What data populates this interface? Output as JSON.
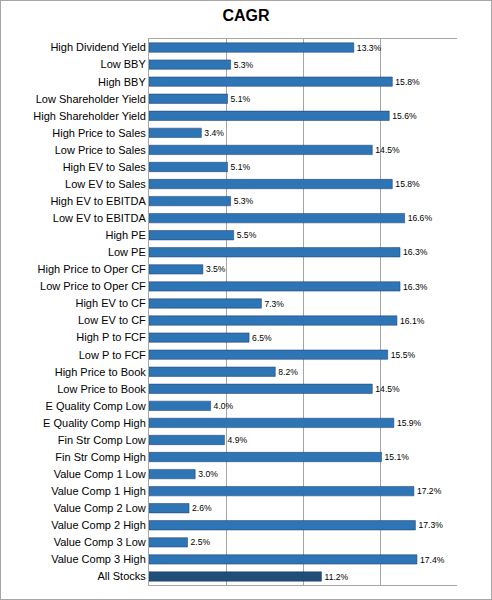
{
  "chart_data": {
    "type": "bar",
    "title": "CAGR",
    "orientation": "horizontal",
    "categories": [
      "High Dividend Yield",
      "Low BBY",
      "High BBY",
      "Low Shareholder Yield",
      "High Shareholder Yield",
      "High Price to Sales",
      "Low Price to Sales",
      "High EV to Sales",
      "Low EV to Sales",
      "High EV to EBITDA",
      "Low EV to EBITDA",
      "High PE",
      "Low PE",
      "High Price to Oper CF",
      "Low Price to Oper CF",
      "High EV to CF",
      "Low EV to CF",
      "High P to FCF",
      "Low P to FCF",
      "High Price to Book",
      "Low Price to Book",
      "E Quality Comp Low",
      "E Quality Comp High",
      "Fin Str Comp Low",
      "Fin Str Comp High",
      "Value Comp 1 Low",
      "Value Comp 1 High",
      "Value Comp 2 Low",
      "Value Comp 2 High",
      "Value Comp 3 Low",
      "Value Comp 3 High",
      "All Stocks"
    ],
    "values": [
      13.3,
      5.3,
      15.8,
      5.1,
      15.6,
      3.4,
      14.5,
      5.1,
      15.8,
      5.3,
      16.6,
      5.5,
      16.3,
      3.5,
      16.3,
      7.3,
      16.1,
      6.5,
      15.5,
      8.2,
      14.5,
      4.0,
      15.9,
      4.9,
      15.1,
      3.0,
      17.2,
      2.6,
      17.3,
      2.5,
      17.4,
      11.2
    ],
    "value_labels": [
      "13.3%",
      "5.3%",
      "15.8%",
      "5.1%",
      "15.6%",
      "3.4%",
      "14.5%",
      "5.1%",
      "15.8%",
      "5.3%",
      "16.6%",
      "5.5%",
      "16.3%",
      "3.5%",
      "16.3%",
      "7.3%",
      "16.1%",
      "6.5%",
      "15.5%",
      "8.2%",
      "14.5%",
      "4.0%",
      "15.9%",
      "4.9%",
      "15.1%",
      "3.0%",
      "17.2%",
      "2.6%",
      "17.3%",
      "2.5%",
      "17.4%",
      "11.2%"
    ],
    "colors": [
      "#2e75b6",
      "#2e75b6",
      "#2e75b6",
      "#2e75b6",
      "#2e75b6",
      "#2e75b6",
      "#2e75b6",
      "#2e75b6",
      "#2e75b6",
      "#2e75b6",
      "#2e75b6",
      "#2e75b6",
      "#2e75b6",
      "#2e75b6",
      "#2e75b6",
      "#2e75b6",
      "#2e75b6",
      "#2e75b6",
      "#2e75b6",
      "#2e75b6",
      "#2e75b6",
      "#2e75b6",
      "#2e75b6",
      "#2e75b6",
      "#2e75b6",
      "#2e75b6",
      "#2e75b6",
      "#2e75b6",
      "#2e75b6",
      "#2e75b6",
      "#2e75b6",
      "#1f4e79"
    ],
    "xlim": [
      0,
      20
    ],
    "xticks": [
      0,
      5,
      10,
      15,
      20
    ],
    "grid": true,
    "data_labels": true,
    "tick_labels": "y"
  }
}
